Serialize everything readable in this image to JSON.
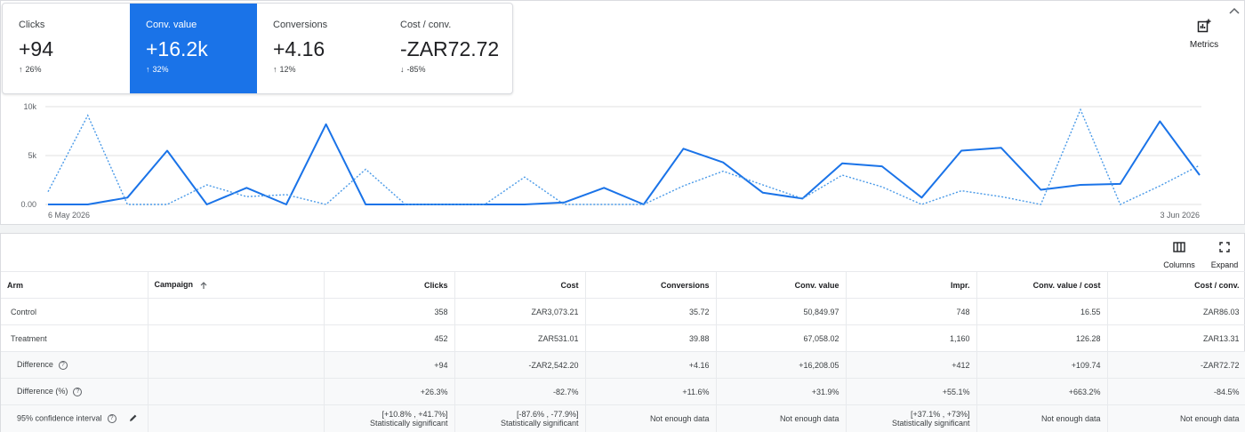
{
  "scorecards": [
    {
      "label": "Clicks",
      "value": "+94",
      "arrow": "↑",
      "change": "26%",
      "selected": false
    },
    {
      "label": "Conv. value",
      "value": "+16.2k",
      "arrow": "↑",
      "change": "32%",
      "selected": true
    },
    {
      "label": "Conversions",
      "value": "+4.16",
      "arrow": "↑",
      "change": "12%",
      "selected": false
    },
    {
      "label": "Cost / conv.",
      "value": "-ZAR72.72",
      "arrow": "↓",
      "change": "-85%",
      "selected": false
    }
  ],
  "toolbar": {
    "metrics_label": "Metrics",
    "columns_label": "Columns",
    "expand_label": "Expand"
  },
  "colors": {
    "accent": "#1a73e8",
    "series_dotted": "#4a9ae8"
  },
  "chart_data": {
    "type": "line",
    "x_start_label": "6 May 2026",
    "x_end_label": "3 Jun 2026",
    "y_ticks": [
      "10k",
      "5k",
      "0.00"
    ],
    "ylim": [
      0,
      10000
    ],
    "series": [
      {
        "style": "solid",
        "values": [
          0,
          0,
          700,
          5500,
          0,
          1700,
          0,
          8200,
          0,
          0,
          0,
          0,
          0,
          200,
          1700,
          0,
          5700,
          4300,
          1200,
          600,
          4200,
          3900,
          700,
          5500,
          5800,
          1500,
          2000,
          2100,
          8500,
          3000
        ]
      },
      {
        "style": "dotted",
        "values": [
          1300,
          9100,
          0,
          0,
          2000,
          800,
          1000,
          0,
          3600,
          0,
          0,
          0,
          2800,
          0,
          0,
          0,
          1900,
          3400,
          2000,
          600,
          3000,
          1800,
          0,
          1400,
          800,
          0,
          9700,
          0,
          1900,
          4000
        ]
      }
    ]
  },
  "table": {
    "headers": [
      "Arm",
      "Campaign",
      "Clicks",
      "Cost",
      "Conversions",
      "Conv. value",
      "Impr.",
      "Conv. value / cost",
      "Cost / conv."
    ],
    "rows": [
      {
        "arm": "Control",
        "clicks": "358",
        "cost": "ZAR3,073.21",
        "conversions": "35.72",
        "conv_value": "50,849.97",
        "impr": "748",
        "value_cost": "16.55",
        "cost_conv": "ZAR86.03"
      },
      {
        "arm": "Treatment",
        "clicks": "452",
        "cost": "ZAR531.01",
        "conversions": "39.88",
        "conv_value": "67,058.02",
        "impr": "1,160",
        "value_cost": "126.28",
        "cost_conv": "ZAR13.31"
      },
      {
        "arm": "Difference",
        "clicks": "+94",
        "cost": "-ZAR2,542.20",
        "conversions": "+4.16",
        "conv_value": "+16,208.05",
        "impr": "+412",
        "value_cost": "+109.74",
        "cost_conv": "-ZAR72.72"
      },
      {
        "arm": "Difference (%)",
        "clicks": "+26.3%",
        "cost": "-82.7%",
        "conversions": "+11.6%",
        "conv_value": "+31.9%",
        "impr": "+55.1%",
        "value_cost": "+663.2%",
        "cost_conv": "-84.5%"
      }
    ],
    "ci_row": {
      "arm": "95% confidence interval",
      "clicks": "[+10.8% , +41.7%]",
      "clicks_sig": "Statistically significant",
      "cost": "[-87.6% , -77.9%]",
      "cost_sig": "Statistically significant",
      "conversions": "Not enough data",
      "conv_value": "Not enough data",
      "impr": "[+37.1% , +73%]",
      "impr_sig": "Statistically significant",
      "value_cost": "Not enough data",
      "cost_conv": "Not enough data"
    }
  }
}
